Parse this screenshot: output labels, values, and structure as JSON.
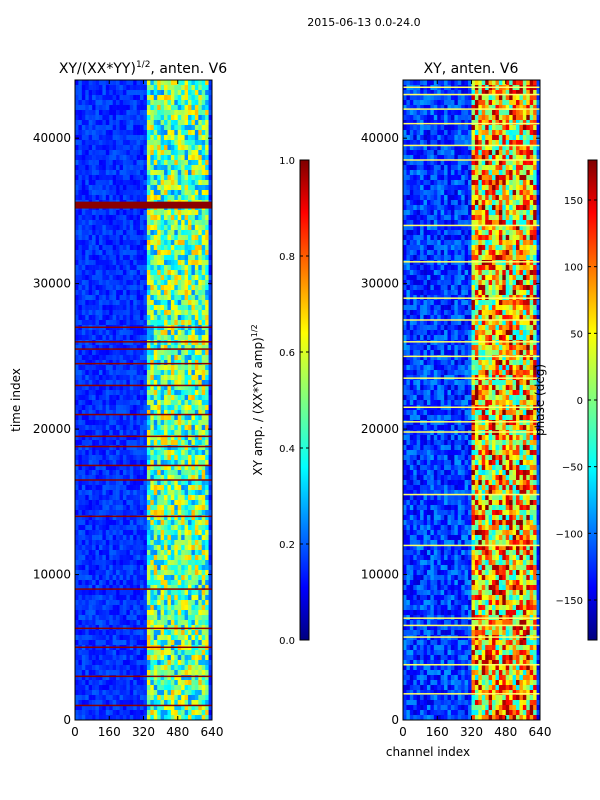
{
  "chart_data": {
    "suptitle": "2015-06-13 0.0-24.0",
    "type": "heatmap",
    "panels": [
      {
        "id": "amp",
        "title_main": "XY/(XX*YY)",
        "title_sup": "1/2",
        "title_suffix": ", anten. V6",
        "xlabel": "",
        "ylabel": "time index",
        "xlim": [
          0,
          640
        ],
        "ylim": [
          0,
          44000
        ],
        "xticks": [
          0,
          160,
          320,
          480,
          640
        ],
        "yticks": [
          0,
          10000,
          20000,
          30000,
          40000
        ],
        "colorbar": {
          "label_main": "XY amp. / (XX*YY amp)",
          "label_sup": "1/2",
          "range": [
            0.0,
            1.0
          ],
          "ticks": [
            "0.0",
            "0.2",
            "0.4",
            "0.6",
            "0.8",
            "1.0"
          ],
          "tick_values": [
            0.0,
            0.2,
            0.4,
            0.6,
            0.8,
            1.0
          ]
        },
        "flagged_rows": [
          35300,
          35500,
          1000,
          3000,
          5000,
          6300,
          9000,
          14000,
          16500,
          17500,
          18800,
          19500,
          21000,
          23000,
          24500,
          25500,
          26000,
          27000
        ]
      },
      {
        "id": "phase",
        "title": "XY, anten. V6",
        "xlabel": "channel index",
        "ylabel": "",
        "xlim": [
          0,
          640
        ],
        "ylim": [
          0,
          44000
        ],
        "xticks": [
          0,
          160,
          320,
          480,
          640
        ],
        "yticks": [
          0,
          10000,
          20000,
          30000,
          40000
        ],
        "colorbar": {
          "label_main": "phase (deg)",
          "range": [
            -180,
            180
          ],
          "ticks": [
            "−150",
            "−100",
            "−50",
            "0",
            "50",
            "100",
            "150"
          ],
          "tick_values": [
            -150,
            -100,
            -50,
            0,
            50,
            100,
            150
          ]
        },
        "flagged_rows": [
          1800,
          3800,
          5700,
          6500,
          7000,
          12000,
          15500,
          19800,
          20500,
          21500,
          23500,
          25000,
          26000,
          27500,
          29000,
          31500,
          34000,
          38500,
          39500,
          41000,
          42000,
          43000,
          43500
        ]
      }
    ]
  }
}
